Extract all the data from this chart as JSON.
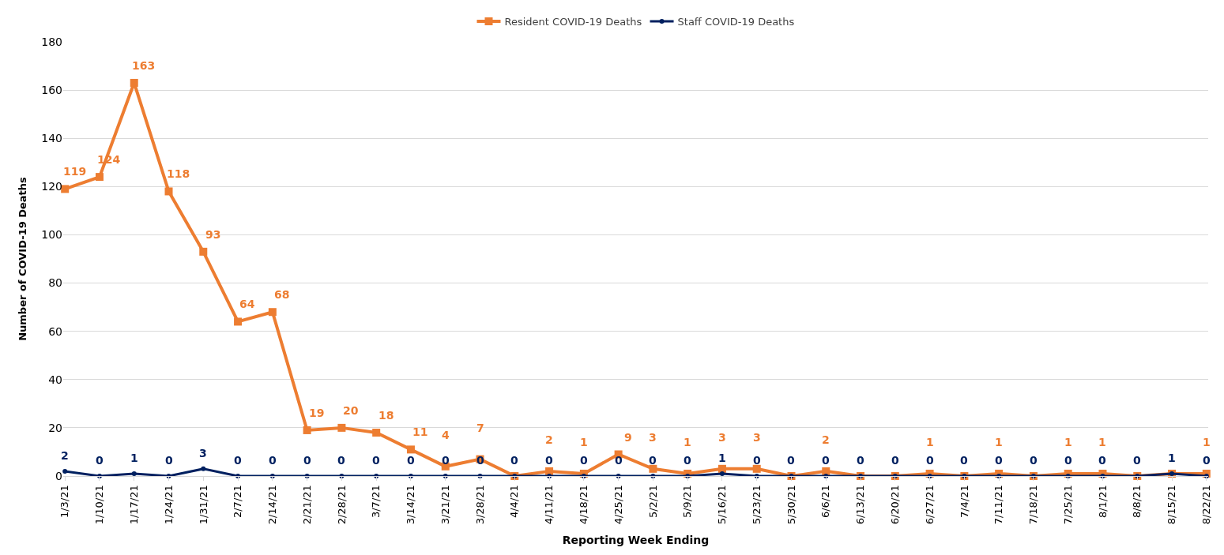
{
  "chart_data": {
    "type": "line",
    "xlabel": "Reporting Week Ending",
    "ylabel": "Number of COVID-19 Deaths",
    "categories": [
      "1/3/21",
      "1/10/21",
      "1/17/21",
      "1/24/21",
      "1/31/21",
      "2/7/21",
      "2/14/21",
      "2/21/21",
      "2/28/21",
      "3/7/21",
      "3/14/21",
      "3/21/21",
      "3/28/21",
      "4/4/21",
      "4/11/21",
      "4/18/21",
      "4/25/21",
      "5/2/21",
      "5/9/21",
      "5/16/21",
      "5/23/21",
      "5/30/21",
      "6/6/21",
      "6/13/21",
      "6/20/21",
      "6/27/21",
      "7/4/21",
      "7/11/21",
      "7/18/21",
      "7/25/21",
      "8/1/21",
      "8/8/21",
      "8/15/21",
      "8/22/21"
    ],
    "series": [
      {
        "name": "Resident COVID-19 Deaths",
        "color": "#ed7d31",
        "marker": "square",
        "values": [
          119,
          124,
          163,
          118,
          93,
          64,
          68,
          19,
          20,
          18,
          11,
          4,
          7,
          0,
          2,
          1,
          9,
          3,
          1,
          3,
          3,
          0,
          2,
          0,
          0,
          1,
          0,
          1,
          0,
          1,
          1,
          0,
          1,
          1
        ],
        "value_labels": [
          "119",
          "124",
          "163",
          "118",
          "93",
          "64",
          "68",
          "19",
          "20",
          "18",
          "11",
          "4",
          "7",
          null,
          "2",
          "1",
          "9",
          "3",
          "1",
          "3",
          "3",
          null,
          "2",
          null,
          null,
          "1",
          null,
          "1",
          null,
          "1",
          "1",
          null,
          null,
          "1"
        ]
      },
      {
        "name": "Staff COVID-19 Deaths",
        "color": "#002060",
        "marker": "circle",
        "values": [
          2,
          0,
          1,
          0,
          3,
          0,
          0,
          0,
          0,
          0,
          0,
          0,
          0,
          0,
          0,
          0,
          0,
          0,
          0,
          1,
          0,
          0,
          0,
          0,
          0,
          0,
          0,
          0,
          0,
          0,
          0,
          0,
          1,
          0
        ],
        "value_labels": [
          "2",
          "0",
          "1",
          "0",
          "3",
          "0",
          "0",
          "0",
          "0",
          "0",
          "0",
          "0",
          "0",
          "0",
          "0",
          "0",
          "0",
          "0",
          "0",
          "1",
          "0",
          "0",
          "0",
          "0",
          "0",
          "0",
          "0",
          "0",
          "0",
          "0",
          "0",
          "0",
          "1",
          "0"
        ]
      }
    ],
    "ylim": [
      0,
      180
    ],
    "yticks": [
      0,
      20,
      40,
      60,
      80,
      100,
      120,
      140,
      160,
      180
    ],
    "grid": "y",
    "legend": "top",
    "line_style": "solid"
  }
}
